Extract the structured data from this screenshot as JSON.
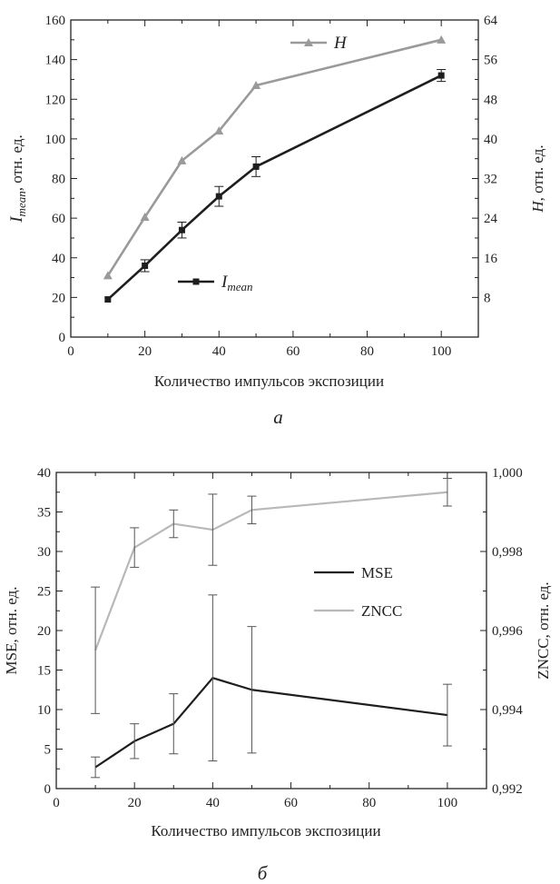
{
  "chart_data": [
    {
      "type": "line",
      "caption": "а",
      "xlabel": "Количество импульсов экспозиции",
      "xlim": [
        0,
        110
      ],
      "xticks": [
        0,
        20,
        40,
        60,
        80,
        100
      ],
      "ylabel_left_main": "I",
      "ylabel_left_sub": "mean",
      "ylabel_left_rest": ", отн. ед.",
      "ylim_left": [
        0,
        160
      ],
      "yticks_left": [
        0,
        20,
        40,
        60,
        80,
        100,
        120,
        140,
        160
      ],
      "ylabel_right": "H, отн. ед.",
      "ylim_right": [
        0,
        64
      ],
      "yticks_right": [
        8,
        16,
        24,
        32,
        40,
        48,
        56,
        64
      ],
      "legend": [
        {
          "series": 0,
          "label_main": "H",
          "label_sub": ""
        },
        {
          "series": 1,
          "label_main": "I",
          "label_sub": "mean"
        }
      ],
      "series": [
        {
          "name": "H",
          "axis": "right",
          "marker": "triangle",
          "color": "#9a9a9a",
          "x": [
            10,
            20,
            30,
            40,
            50,
            100
          ],
          "values": [
            12.4,
            24.2,
            35.6,
            41.6,
            50.8,
            60.0
          ]
        },
        {
          "name": "Imean",
          "axis": "left",
          "marker": "square",
          "color": "#1e1e1e",
          "x": [
            10,
            20,
            30,
            40,
            50,
            100
          ],
          "values": [
            19,
            36,
            54,
            71,
            86,
            132
          ],
          "err": [
            0,
            3,
            4,
            5,
            5,
            3
          ]
        }
      ]
    },
    {
      "type": "line",
      "caption": "б",
      "xlabel": "Количество импульсов экспозиции",
      "xlim": [
        0,
        110
      ],
      "xticks": [
        0,
        20,
        40,
        60,
        80,
        100
      ],
      "ylabel_left": "MSE, отн. ед.",
      "ylim_left": [
        0,
        40
      ],
      "yticks_left": [
        0,
        5,
        10,
        15,
        20,
        25,
        30,
        35,
        40
      ],
      "ylabel_right": "ZNCC, отн. ед.",
      "ylim_right": [
        0.992,
        1.0
      ],
      "yticks_right": [
        0.992,
        0.994,
        0.996,
        0.998,
        1.0
      ],
      "yticklabels_right": [
        "0,992",
        "0,994",
        "0,996",
        "0,998",
        "1,000"
      ],
      "legend": [
        {
          "series": 0,
          "label": "MSE"
        },
        {
          "series": 1,
          "label": "ZNCC"
        }
      ],
      "series": [
        {
          "name": "MSE",
          "axis": "left",
          "color": "#1e1e1e",
          "x": [
            10,
            20,
            30,
            40,
            50,
            100
          ],
          "values": [
            2.7,
            6.0,
            8.2,
            14.0,
            12.5,
            9.3
          ],
          "err": [
            1.3,
            2.2,
            3.8,
            10.5,
            8.0,
            3.9
          ]
        },
        {
          "name": "ZNCC",
          "axis": "right",
          "color": "#b8b8b8",
          "x": [
            10,
            20,
            30,
            40,
            50,
            100
          ],
          "values": [
            0.9955,
            0.9981,
            0.9987,
            0.99855,
            0.99905,
            0.9995
          ],
          "err": [
            0.0016,
            0.0005,
            0.00035,
            0.0009,
            0.00035,
            0.00035
          ]
        }
      ]
    }
  ]
}
